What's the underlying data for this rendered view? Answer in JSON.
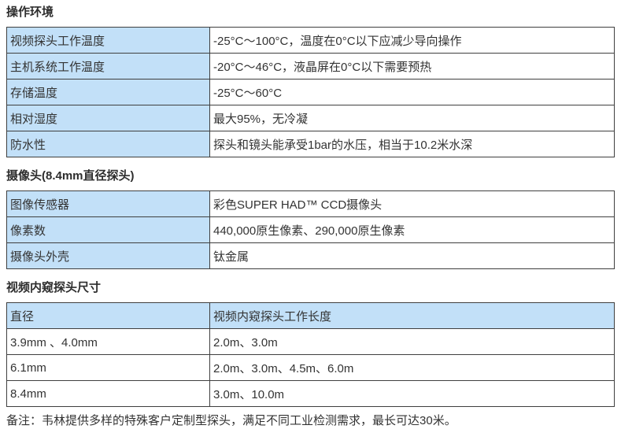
{
  "sections": [
    {
      "heading": "操作环境",
      "rows": [
        {
          "label": "视频探头工作温度",
          "value": "-25°C～100°C，温度在0°C以下应减少导向操作"
        },
        {
          "label": "主机系统工作温度",
          "value": "-20°C～46°C，液晶屏在0°C以下需要预热"
        },
        {
          "label": "存储温度",
          "value": "-25°C～60°C"
        },
        {
          "label": "相对湿度",
          "value": "最大95%，无冷凝"
        },
        {
          "label": "防水性",
          "value": "探头和镜头能承受1bar的水压，相当于10.2米水深"
        }
      ]
    },
    {
      "heading": "摄像头(8.4mm直径探头)",
      "rows": [
        {
          "label": "图像传感器",
          "value": "彩色SUPER HAD™ CCD摄像头"
        },
        {
          "label": "像素数",
          "value": "440,000原生像素、290,000原生像素"
        },
        {
          "label": "摄像头外壳",
          "value": "钛金属"
        }
      ]
    },
    {
      "heading": "视频内窥探头尺寸",
      "header_row": {
        "label": "直径",
        "value": "视频内窥探头工作长度"
      },
      "rows": [
        {
          "label": "3.9mm 、4.0mm",
          "value": "2.0m、3.0m"
        },
        {
          "label": "6.1mm",
          "value": "2.0m、3.0m、4.5m、6.0m"
        },
        {
          "label": "8.4mm",
          "value": "3.0m、10.0m"
        }
      ]
    }
  ],
  "note": "备注：韦林提供多样的特殊客户定制型探头，满足不同工业检测需求，最长可达30米。",
  "colors": {
    "label_cell_bg": "#c2e0f8",
    "border": "#3f3f3f",
    "text": "#333333"
  }
}
